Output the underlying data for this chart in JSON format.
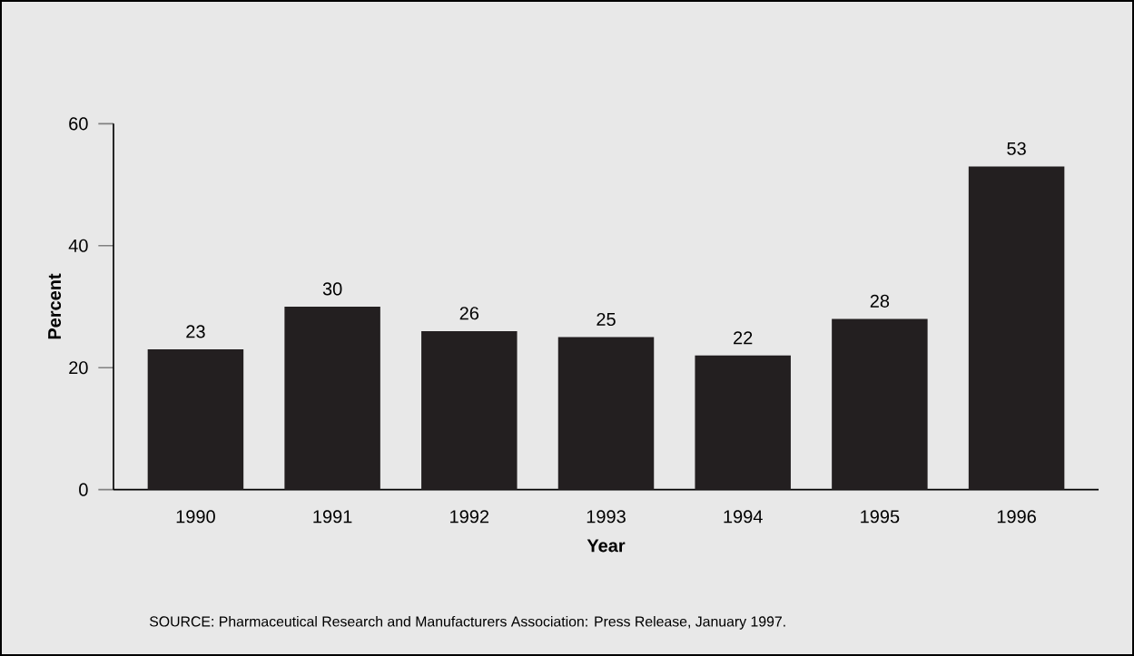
{
  "chart_data": {
    "type": "bar",
    "xlabel": "Year",
    "ylabel": "Percent",
    "categories": [
      "1990",
      "1991",
      "1992",
      "1993",
      "1994",
      "1995",
      "1996"
    ],
    "values": [
      23,
      30,
      26,
      25,
      22,
      28,
      53
    ],
    "color": "#231f20",
    "ylim": [
      0,
      60
    ],
    "yticks": [
      0,
      20,
      40,
      60
    ],
    "data_labels": true,
    "annotations": [
      "SOURCE: Pharmaceutical Research and Manufacturers Association: Press Release, January 1997."
    ]
  }
}
